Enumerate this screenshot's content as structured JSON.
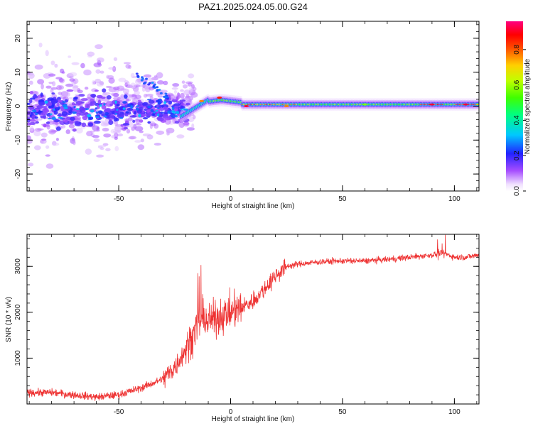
{
  "title": "PAZ1.2025.024.05.00.G24",
  "colorbar": {
    "label": "Normalized spectral amplitude",
    "ticks": [
      "0.0",
      "0.2",
      "0.4",
      "0.6",
      "0.8"
    ],
    "range": [
      0,
      0.96
    ]
  },
  "chart_data": [
    {
      "type": "heatmap",
      "title": "PAZ1.2025.024.05.00.G24",
      "xlabel": "Height of straight line (km)",
      "ylabel": "Frequency (Hz)",
      "xlim": [
        -91,
        111
      ],
      "ylim": [
        -25,
        25
      ],
      "x_ticks": [
        -50,
        0,
        50,
        100
      ],
      "y_ticks": [
        -20,
        -10,
        0,
        10,
        20
      ],
      "x_tick_labels": [
        "-50",
        "0",
        "50",
        "100"
      ],
      "y_tick_labels": [
        "-20",
        "-10",
        "0",
        "10",
        "20"
      ],
      "colormap": "rainbow (white-violet-blue-cyan-green-yellow-red-magenta)",
      "description_points": [
        {
          "x": -20,
          "y": -1,
          "v": 0.3
        },
        {
          "x": -13,
          "y": 1.5,
          "v": 0.8
        },
        {
          "x": -5,
          "y": 2.5,
          "v": 0.9
        },
        {
          "x": 7,
          "y": 0,
          "v": 0.95
        },
        {
          "x": 25,
          "y": 0,
          "v": 0.8
        },
        {
          "x": 60,
          "y": 0.5,
          "v": 0.6
        },
        {
          "x": 90,
          "y": 0.5,
          "v": 0.95
        },
        {
          "x": 105,
          "y": 0.5,
          "v": 0.95
        }
      ]
    },
    {
      "type": "line",
      "xlabel": "Height of straight line (km)",
      "ylabel": "SNR (10 * v/v)",
      "xlim": [
        -91,
        111
      ],
      "ylim": [
        0,
        3700
      ],
      "x_ticks": [
        -50,
        0,
        50,
        100
      ],
      "y_ticks": [
        1000,
        2000,
        3000
      ],
      "x_tick_labels": [
        "-50",
        "0",
        "50",
        "100"
      ],
      "y_tick_labels": [
        "1000",
        "2000",
        "3000"
      ],
      "color": "#ee3333",
      "x": [
        -91,
        -80,
        -70,
        -60,
        -50,
        -40,
        -30,
        -25,
        -20,
        -15,
        -12,
        -10,
        -5,
        0,
        5,
        10,
        15,
        20,
        25,
        30,
        40,
        50,
        60,
        70,
        80,
        90,
        95,
        100,
        105,
        111
      ],
      "y": [
        250,
        250,
        200,
        150,
        200,
        350,
        550,
        800,
        1200,
        1700,
        1900,
        1800,
        1900,
        2000,
        2100,
        2250,
        2500,
        2800,
        3000,
        3050,
        3100,
        3120,
        3120,
        3150,
        3200,
        3250,
        3300,
        3200,
        3200,
        3250
      ]
    }
  ]
}
